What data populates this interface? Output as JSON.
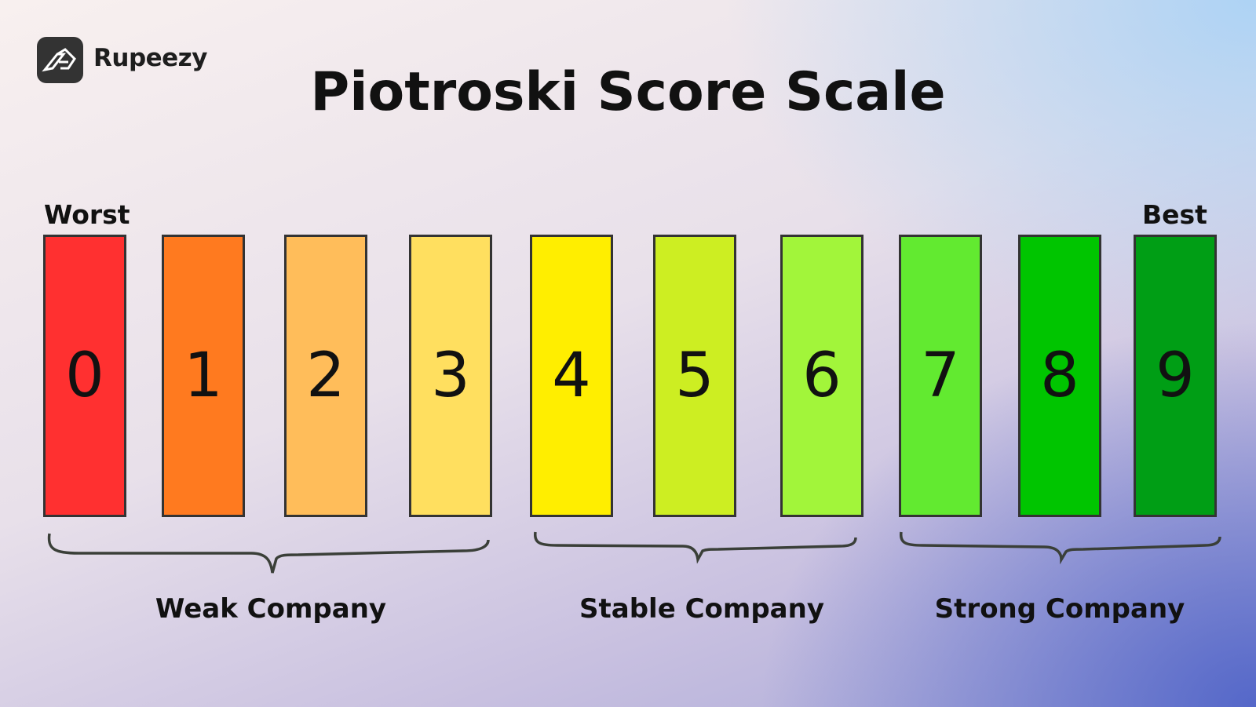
{
  "brand": {
    "name": "Rupeezy",
    "icon": "rupeezy-logo-icon"
  },
  "title": "Piotroski Score Scale",
  "labels": {
    "worst": "Worst",
    "best": "Best"
  },
  "scores": [
    {
      "value": "0",
      "color": "#ff3030"
    },
    {
      "value": "1",
      "color": "#ff7a1f"
    },
    {
      "value": "2",
      "color": "#ffbd5a"
    },
    {
      "value": "3",
      "color": "#ffdf5f"
    },
    {
      "value": "4",
      "color": "#ffee00"
    },
    {
      "value": "5",
      "color": "#cdee22"
    },
    {
      "value": "6",
      "color": "#a2f53a"
    },
    {
      "value": "7",
      "color": "#62ea30"
    },
    {
      "value": "8",
      "color": "#00c500"
    },
    {
      "value": "9",
      "color": "#009e15"
    }
  ],
  "groups": [
    {
      "label": "Weak Company",
      "range": "0-3"
    },
    {
      "label": "Stable Company",
      "range": "4-6"
    },
    {
      "label": "Strong Company",
      "range": "7-9"
    }
  ]
}
